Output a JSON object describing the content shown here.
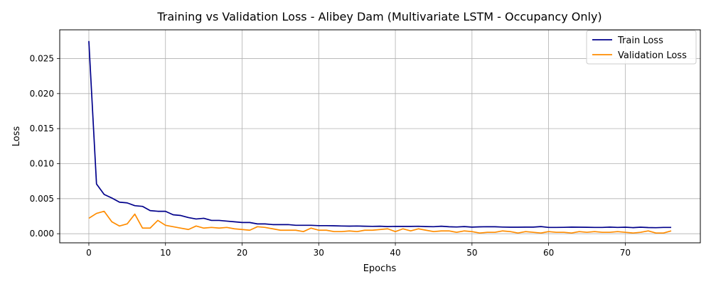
{
  "chart_data": {
    "type": "line",
    "title": "Training vs Validation Loss - Alibey Dam (Multivariate LSTM - Occupancy Only)",
    "xlabel": "Epochs",
    "ylabel": "Loss",
    "xlim": [
      -3.8,
      79.8
    ],
    "ylim": [
      -0.0013,
      0.0291
    ],
    "xticks": [
      0,
      10,
      20,
      30,
      40,
      50,
      60,
      70
    ],
    "yticks": [
      0.0,
      0.005,
      0.01,
      0.015,
      0.02,
      0.025
    ],
    "ytick_labels": [
      "0.000",
      "0.005",
      "0.010",
      "0.015",
      "0.020",
      "0.025"
    ],
    "grid": true,
    "legend_position": "top-right",
    "series": [
      {
        "name": "Train Loss",
        "color": "#00008b",
        "values": [
          0.0275,
          0.0071,
          0.0056,
          0.0051,
          0.0045,
          0.0044,
          0.004,
          0.0039,
          0.0033,
          0.0032,
          0.0032,
          0.0027,
          0.0026,
          0.0023,
          0.0021,
          0.0022,
          0.0019,
          0.0019,
          0.0018,
          0.0017,
          0.0016,
          0.0016,
          0.0014,
          0.0014,
          0.0013,
          0.0013,
          0.0013,
          0.0012,
          0.0012,
          0.0012,
          0.00115,
          0.00115,
          0.00113,
          0.0011,
          0.00108,
          0.0011,
          0.00107,
          0.00105,
          0.00107,
          0.00102,
          0.00105,
          0.00104,
          0.00104,
          0.00106,
          0.00102,
          0.001,
          0.00107,
          0.00099,
          0.00096,
          0.00102,
          0.00094,
          0.00098,
          0.001,
          0.00099,
          0.00095,
          0.00093,
          0.00093,
          0.00094,
          0.00094,
          0.00102,
          0.0009,
          0.0009,
          0.00091,
          0.00094,
          0.00093,
          0.00092,
          0.0009,
          0.0009,
          0.00094,
          0.0009,
          0.00093,
          0.00087,
          0.00093,
          0.00088,
          0.00086,
          0.0009,
          0.0009
        ]
      },
      {
        "name": "Validation Loss",
        "color": "#ff8c00",
        "values": [
          0.0022,
          0.0029,
          0.0032,
          0.0017,
          0.0011,
          0.0014,
          0.0028,
          0.0008,
          0.0008,
          0.0019,
          0.0012,
          0.001,
          0.0008,
          0.0006,
          0.0011,
          0.0008,
          0.0009,
          0.0008,
          0.0009,
          0.0007,
          0.0006,
          0.0005,
          0.001,
          0.0009,
          0.0007,
          0.0005,
          0.0005,
          0.0005,
          0.0003,
          0.0008,
          0.0005,
          0.0005,
          0.0003,
          0.0003,
          0.0004,
          0.0003,
          0.0005,
          0.0005,
          0.0006,
          0.0007,
          0.0003,
          0.0007,
          0.0004,
          0.0007,
          0.0005,
          0.0003,
          0.0004,
          0.0004,
          0.0002,
          0.0004,
          0.0003,
          0.0001,
          0.0002,
          0.0002,
          0.0004,
          0.0003,
          0.0001,
          0.0003,
          0.0002,
          0.0001,
          0.0003,
          0.0002,
          0.0002,
          0.0001,
          0.0003,
          0.0002,
          0.0003,
          0.0002,
          0.0002,
          0.0003,
          0.0002,
          0.0001,
          0.0002,
          0.0004,
          0.0001,
          0.0001,
          0.0004
        ]
      }
    ]
  }
}
